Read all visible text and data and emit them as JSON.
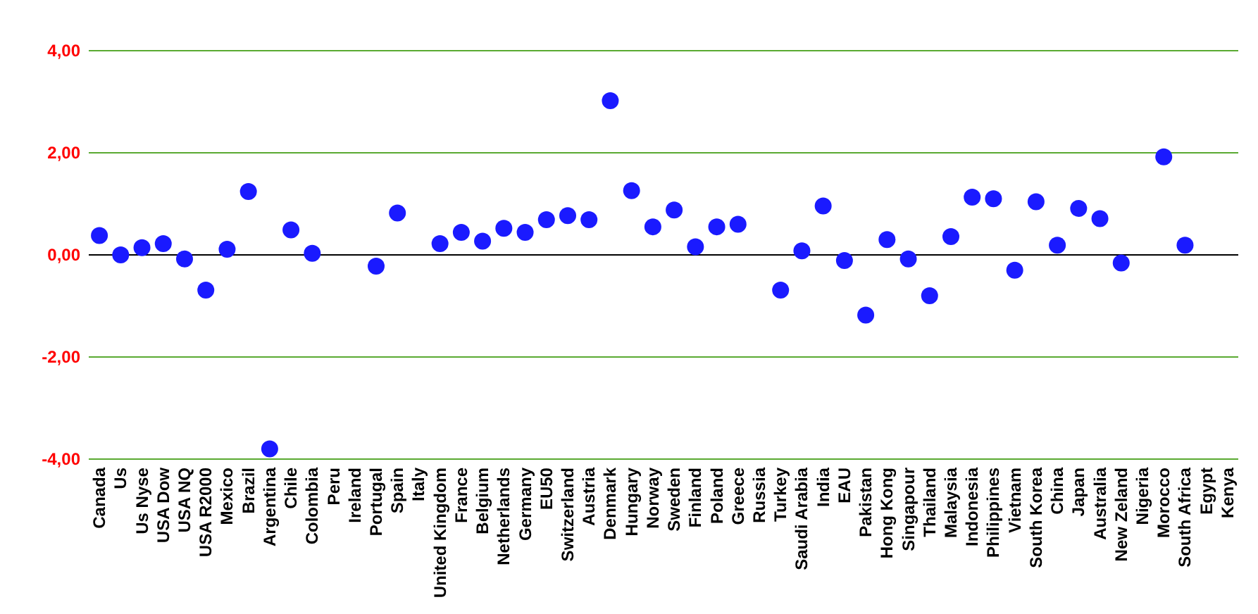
{
  "chart_data": {
    "type": "scatter",
    "marker": "circle",
    "grid": "y",
    "categories": [
      "Canada",
      "Us",
      "Us Nyse",
      "USA Dow",
      "USA NQ",
      "USA R2000",
      "Mexico",
      "Brazil",
      "Argentina",
      "Chile",
      "Colombia",
      "Peru",
      "Ireland",
      "Portugal",
      "Spain",
      "Italy",
      "United Kingdom",
      "France",
      "Belgium",
      "Netherlands",
      "Germany",
      "EU50",
      "Switzerland",
      "Austria",
      "Denmark",
      "Hungary",
      "Norway",
      "Sweden",
      "Finland",
      "Poland",
      "Greece",
      "Russia",
      "Turkey",
      "Saudi Arabia",
      "India",
      "EAU",
      "Pakistan",
      "Hong Kong",
      "Singapour",
      "Thailand",
      "Malaysia",
      "Indonesia",
      "Philippines",
      "Vietnam",
      "South Korea",
      "China",
      "Japan",
      "Australia",
      "New Zeland",
      "Nigeria",
      "Morocco",
      "South Africa",
      "Egypt",
      "Kenya"
    ],
    "series": [
      {
        "color": "#1a1aff",
        "values": [
          0.38,
          0.0,
          0.14,
          0.22,
          -0.08,
          -0.69,
          0.11,
          1.24,
          -3.8,
          0.49,
          0.03,
          null,
          null,
          -0.22,
          0.82,
          null,
          0.22,
          0.44,
          0.27,
          0.52,
          0.44,
          0.69,
          0.77,
          0.69,
          3.02,
          1.26,
          0.55,
          0.88,
          0.16,
          0.55,
          0.6,
          null,
          -0.69,
          0.08,
          0.96,
          -0.11,
          -1.18,
          0.3,
          -0.08,
          -0.8,
          0.36,
          1.13,
          1.1,
          -0.3,
          1.04,
          0.19,
          0.91,
          0.71,
          -0.16,
          null,
          1.92,
          0.19,
          null,
          null
        ]
      }
    ],
    "ylim": [
      -4,
      4
    ],
    "yticks": [
      {
        "value": -4,
        "label": "-4,00"
      },
      {
        "value": -2,
        "label": "-2,00"
      },
      {
        "value": 0,
        "label": "0,00"
      },
      {
        "value": 2,
        "label": "2,00"
      },
      {
        "value": 4,
        "label": "4,00"
      }
    ]
  }
}
